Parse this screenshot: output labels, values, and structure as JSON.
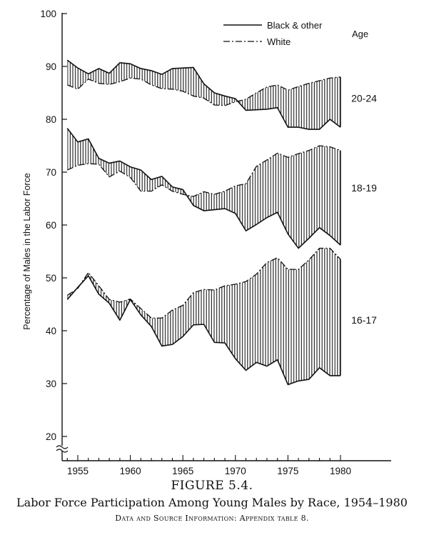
{
  "figure": {
    "label": "FIGURE 5.4.",
    "title": "Labor Force Participation Among Young Males by Race, 1954–1980",
    "source": "Data and Source Information: Appendix table 8."
  },
  "chart_data": {
    "type": "line",
    "ylabel": "Percentage of Males in the Labor Force",
    "xlabel": "",
    "xlim": [
      1953,
      1980
    ],
    "ylim": [
      20,
      100
    ],
    "x_ticks": [
      1955,
      1960,
      1965,
      1970,
      1975,
      1980
    ],
    "y_ticks": [
      20,
      30,
      40,
      50,
      60,
      70,
      80,
      90,
      100
    ],
    "grid": false,
    "axis_break": true,
    "legend": {
      "placement": "top-right",
      "entries": [
        "Black & other",
        "White"
      ],
      "age_header": "Age"
    },
    "x": [
      1954,
      1955,
      1956,
      1957,
      1958,
      1959,
      1960,
      1961,
      1962,
      1963,
      1964,
      1965,
      1966,
      1967,
      1968,
      1969,
      1970,
      1971,
      1972,
      1973,
      1974,
      1975,
      1976,
      1977,
      1978,
      1979,
      1980
    ],
    "groups": [
      {
        "age": "20-24",
        "black": [
          91.2,
          89.7,
          88.6,
          89.6,
          88.7,
          90.7,
          90.5,
          89.6,
          89.2,
          88.5,
          89.6,
          89.7,
          89.8,
          86.7,
          85.0,
          84.4,
          83.9,
          81.7,
          81.8,
          81.9,
          82.2,
          78.5,
          78.5,
          78.1,
          78.1,
          80.0,
          78.5
        ],
        "white": [
          86.5,
          85.7,
          87.6,
          86.8,
          86.6,
          87.1,
          87.8,
          87.6,
          86.5,
          85.8,
          85.7,
          85.3,
          84.4,
          84.0,
          82.7,
          82.6,
          83.3,
          83.8,
          85.0,
          86.1,
          86.5,
          85.5,
          86.2,
          86.8,
          87.3,
          87.8,
          88.0
        ],
        "label_y": 84
      },
      {
        "age": "18-19",
        "black": [
          78.3,
          75.7,
          76.3,
          72.6,
          71.7,
          72.1,
          71.0,
          70.4,
          68.6,
          69.2,
          67.2,
          66.7,
          63.7,
          62.7,
          62.9,
          63.1,
          62.2,
          58.9,
          60.1,
          61.4,
          62.4,
          58.3,
          55.6,
          57.5,
          59.5,
          58.0,
          56.2
        ],
        "white": [
          70.4,
          71.3,
          71.6,
          71.5,
          69.1,
          70.2,
          69.0,
          66.4,
          66.4,
          67.6,
          66.4,
          65.8,
          65.4,
          66.3,
          65.8,
          66.4,
          67.4,
          67.8,
          71.1,
          72.3,
          73.6,
          72.8,
          73.5,
          74.1,
          75.0,
          74.8,
          74.1
        ],
        "label_y": 67
      },
      {
        "age": "16-17",
        "black": [
          45.9,
          48.2,
          50.4,
          46.9,
          45.2,
          42.0,
          45.9,
          43.0,
          40.8,
          37.1,
          37.4,
          38.9,
          41.1,
          41.2,
          37.8,
          37.7,
          34.7,
          32.5,
          34.0,
          33.3,
          34.5,
          29.8,
          30.5,
          30.8,
          33.0,
          31.5,
          31.5
        ],
        "white": [
          46.7,
          48.0,
          51.0,
          48.5,
          45.9,
          45.4,
          46.0,
          44.2,
          42.4,
          42.4,
          43.9,
          44.8,
          47.2,
          47.8,
          47.7,
          48.5,
          48.8,
          49.3,
          50.7,
          52.9,
          53.8,
          51.6,
          51.6,
          53.4,
          55.6,
          55.6,
          53.5
        ],
        "label_y": 42
      }
    ]
  }
}
